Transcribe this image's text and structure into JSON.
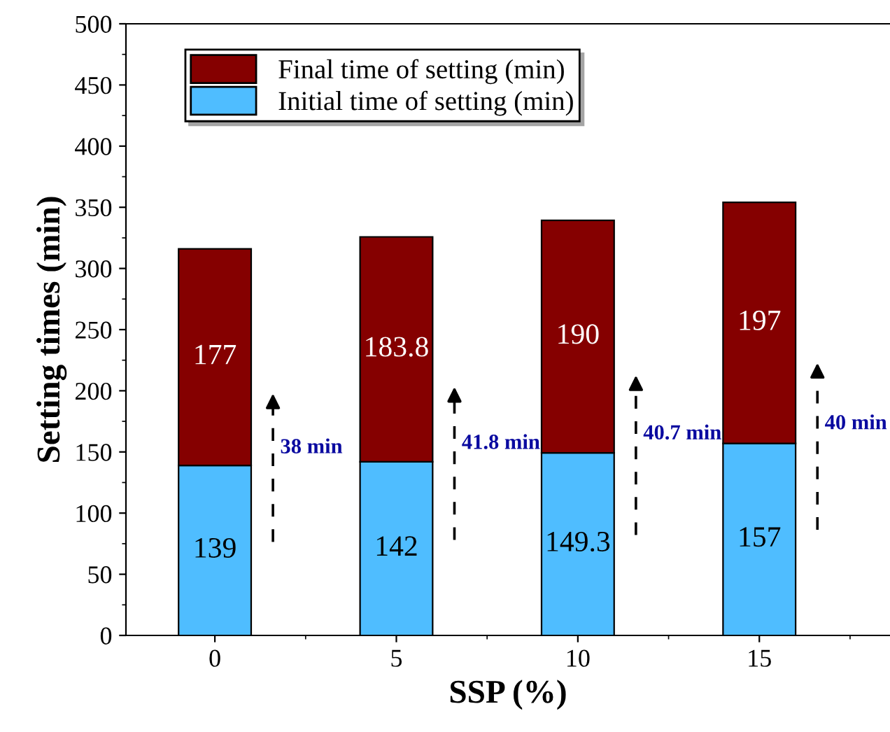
{
  "chart_data": {
    "type": "bar",
    "stacked": true,
    "xlabel": "SSP (%)",
    "ylabel": "Setting times (min)",
    "categories": [
      "0",
      "5",
      "10",
      "15"
    ],
    "series": [
      {
        "name": "Initial time of setting (min)",
        "color": "#4fbdff",
        "values": [
          139,
          142,
          149.3,
          157
        ]
      },
      {
        "name": "Final time of setting (min)",
        "color": "#850000",
        "values": [
          177,
          183.8,
          190,
          197
        ]
      }
    ],
    "data_labels": true,
    "ylim": [
      0,
      500
    ],
    "yticks": [
      0,
      50,
      100,
      150,
      200,
      250,
      300,
      350,
      400,
      450,
      500
    ],
    "grid": false,
    "legend": "top left",
    "annotations": [
      "38 min",
      "41.8 min",
      "40.7 min",
      "40 min"
    ]
  }
}
